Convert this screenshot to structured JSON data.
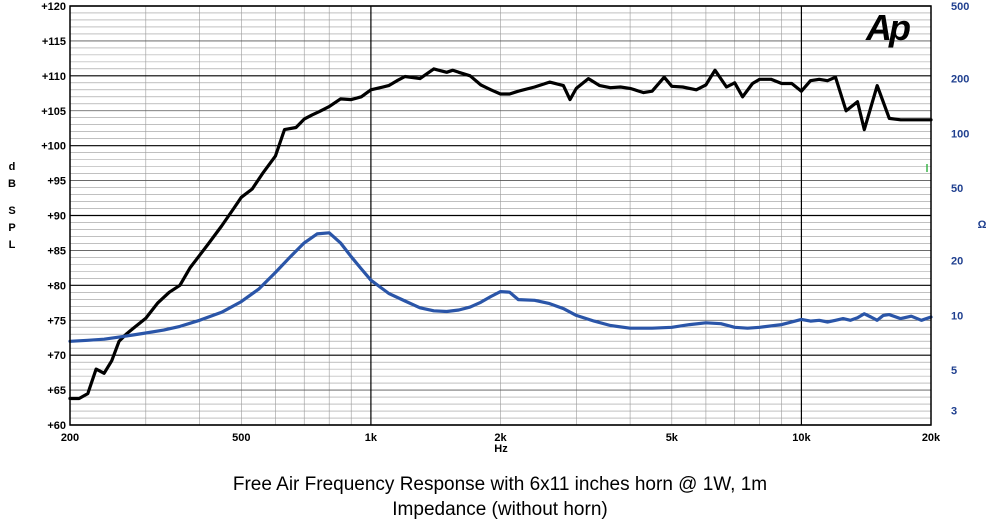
{
  "captions": {
    "line1": "Free Air Frequency Response with 6x11 inches horn @ 1W, 1m",
    "line2": "Impedance (without horn)"
  },
  "logo_text": "Ap",
  "chart_data": {
    "type": "line",
    "xscale": "log",
    "xlim": [
      200,
      20000
    ],
    "xlabel": "Hz",
    "x_ticks": [
      200,
      500,
      1000,
      2000,
      5000,
      10000,
      20000
    ],
    "x_tick_labels": [
      "200",
      "500",
      "1k",
      "2k",
      "5k",
      "10k",
      "20k"
    ],
    "y_left": {
      "label": "dB SPL",
      "lim": [
        60,
        120
      ],
      "ticks": [
        60,
        65,
        70,
        75,
        80,
        85,
        90,
        95,
        100,
        105,
        110,
        115,
        120
      ],
      "tick_labels": [
        "+60",
        "+65",
        "+70",
        "+75",
        "+80",
        "+85",
        "+90",
        "+95",
        "+100",
        "+105",
        "+110",
        "+115",
        "+120"
      ]
    },
    "y_right": {
      "label": "Ω",
      "scale": "log",
      "lim": [
        2.5,
        500
      ],
      "ticks": [
        3,
        5,
        10,
        20,
        50,
        100,
        200,
        500
      ],
      "tick_labels": [
        "3",
        "5",
        "10",
        "20",
        "50",
        "100",
        "200",
        "500"
      ]
    },
    "grid": true,
    "series": [
      {
        "axis": "left",
        "color": "#000000",
        "x": [
          200,
          210,
          220,
          230,
          240,
          250,
          260,
          270,
          280,
          300,
          320,
          340,
          360,
          380,
          400,
          420,
          450,
          480,
          500,
          530,
          560,
          600,
          630,
          670,
          700,
          730,
          760,
          800,
          850,
          900,
          950,
          1000,
          1050,
          1100,
          1150,
          1200,
          1300,
          1400,
          1500,
          1550,
          1600,
          1700,
          1800,
          1900,
          2000,
          2100,
          2200,
          2400,
          2600,
          2800,
          2900,
          3000,
          3200,
          3400,
          3600,
          3800,
          4000,
          4300,
          4500,
          4800,
          5000,
          5300,
          5700,
          6000,
          6300,
          6700,
          7000,
          7300,
          7700,
          8000,
          8500,
          9000,
          9500,
          10000,
          10500,
          11000,
          11500,
          12000,
          12700,
          13500,
          14000,
          15000,
          16000,
          17000,
          18000,
          19000,
          20000
        ],
        "y": [
          63.8,
          63.8,
          64.5,
          68.0,
          67.4,
          69.2,
          72.0,
          73.0,
          73.8,
          75.3,
          77.5,
          79.0,
          80.0,
          82.5,
          84.3,
          86.0,
          88.5,
          91.0,
          92.6,
          93.8,
          96.0,
          98.5,
          102.3,
          102.6,
          103.8,
          104.4,
          104.9,
          105.6,
          106.7,
          106.6,
          107.0,
          108.0,
          108.3,
          108.6,
          109.3,
          109.9,
          109.6,
          111.0,
          110.5,
          110.8,
          110.5,
          110.0,
          108.7,
          108.0,
          107.4,
          107.4,
          107.8,
          108.4,
          109.1,
          108.6,
          106.6,
          108.2,
          109.6,
          108.6,
          108.3,
          108.4,
          108.2,
          107.6,
          107.8,
          109.8,
          108.5,
          108.4,
          108.0,
          108.7,
          110.8,
          108.4,
          109.0,
          107.0,
          108.9,
          109.5,
          109.5,
          108.9,
          108.9,
          107.8,
          109.3,
          109.5,
          109.3,
          109.8,
          105.0,
          106.3,
          102.3,
          108.6,
          103.9,
          103.7,
          103.7,
          103.7,
          103.7
        ]
      },
      {
        "axis": "right",
        "color": "#2a55a8",
        "x": [
          200,
          220,
          240,
          260,
          280,
          300,
          330,
          360,
          400,
          450,
          500,
          550,
          600,
          650,
          700,
          750,
          800,
          850,
          900,
          950,
          1000,
          1100,
          1200,
          1300,
          1400,
          1500,
          1600,
          1700,
          1800,
          1900,
          2000,
          2100,
          2200,
          2400,
          2600,
          2800,
          3000,
          3300,
          3600,
          4000,
          4500,
          5000,
          5500,
          6000,
          6500,
          7000,
          7500,
          8000,
          9000,
          10000,
          10500,
          11000,
          11500,
          12000,
          12500,
          13000,
          13500,
          14000,
          14500,
          15000,
          15500,
          16000,
          17000,
          18000,
          19000,
          20000
        ],
        "y": [
          7.2,
          7.3,
          7.4,
          7.6,
          7.8,
          8.0,
          8.3,
          8.7,
          9.4,
          10.4,
          11.9,
          14.0,
          17.2,
          21.0,
          25.0,
          28.0,
          28.4,
          25.0,
          21.0,
          18.0,
          15.6,
          13.2,
          12.0,
          11.0,
          10.6,
          10.5,
          10.7,
          11.1,
          11.8,
          12.7,
          13.5,
          13.4,
          12.2,
          12.1,
          11.6,
          10.9,
          10.0,
          9.3,
          8.8,
          8.5,
          8.5,
          8.6,
          8.9,
          9.1,
          9.0,
          8.6,
          8.5,
          8.6,
          8.9,
          9.5,
          9.3,
          9.4,
          9.2,
          9.4,
          9.6,
          9.4,
          9.7,
          10.2,
          9.8,
          9.4,
          10.0,
          10.1,
          9.6,
          9.9,
          9.4,
          9.8
        ]
      }
    ]
  }
}
